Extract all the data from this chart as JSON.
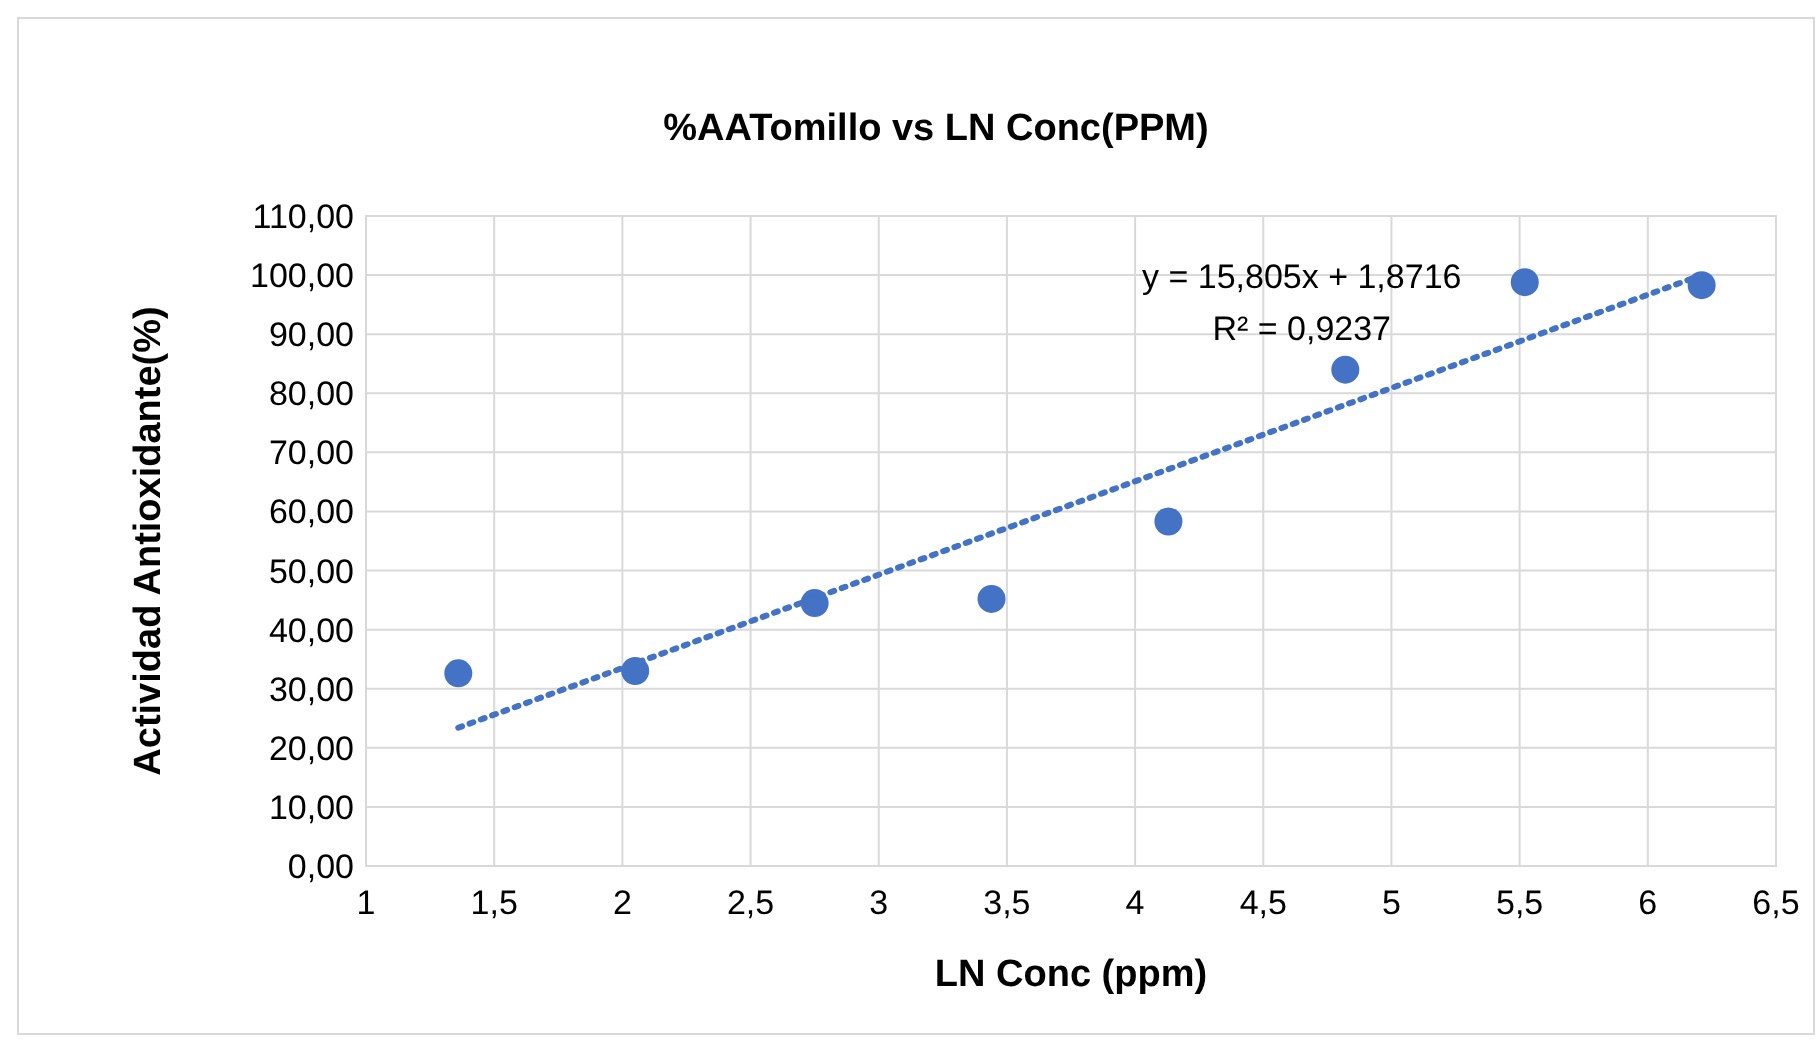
{
  "chart_data": {
    "type": "scatter",
    "title": "%AATomillo vs LN Conc(PPM)",
    "xlabel": "LN Conc (ppm)",
    "ylabel": "Actividad Antioxidante(%)",
    "xlim": [
      1,
      6.5
    ],
    "xticks": [
      1,
      {
        "value": 1.5,
        "label": "1,5"
      },
      2,
      {
        "value": 2.5,
        "label": "2,5"
      },
      3,
      {
        "value": 3.5,
        "label": "3,5"
      },
      4,
      {
        "value": 4.5,
        "label": "4,5"
      },
      5,
      {
        "value": 5.5,
        "label": "5,5"
      },
      6,
      {
        "value": 6.5,
        "label": "6,5"
      }
    ],
    "ylim": [
      0,
      110
    ],
    "yticks": [
      {
        "value": 0,
        "label": "0,00"
      },
      {
        "value": 10,
        "label": "10,00"
      },
      {
        "value": 20,
        "label": "20,00"
      },
      {
        "value": 30,
        "label": "30,00"
      },
      {
        "value": 40,
        "label": "40,00"
      },
      {
        "value": 50,
        "label": "50,00"
      },
      {
        "value": 60,
        "label": "60,00"
      },
      {
        "value": 70,
        "label": "70,00"
      },
      {
        "value": 80,
        "label": "80,00"
      },
      {
        "value": 90,
        "label": "90,00"
      },
      {
        "value": 100,
        "label": "100,00"
      },
      {
        "value": 110,
        "label": "110,00"
      }
    ],
    "grid": true,
    "marker": "circle",
    "series": [
      {
        "color": "#4472c4",
        "x": [
          1.36,
          2.05,
          2.75,
          3.44,
          4.13,
          4.82,
          5.52,
          6.21
        ],
        "values": [
          32.6,
          33.0,
          44.5,
          45.2,
          58.3,
          84.0,
          98.8,
          98.3
        ]
      },
      {
        "type": "line",
        "color": "#4472c4",
        "line_style": "dotted",
        "marker": "none",
        "x": [
          1.36,
          6.21
        ],
        "values": [
          23.4,
          100.0
        ]
      }
    ],
    "annotations": [
      "y = 15,805x + 1,8716",
      "R² = 0,9237"
    ]
  }
}
